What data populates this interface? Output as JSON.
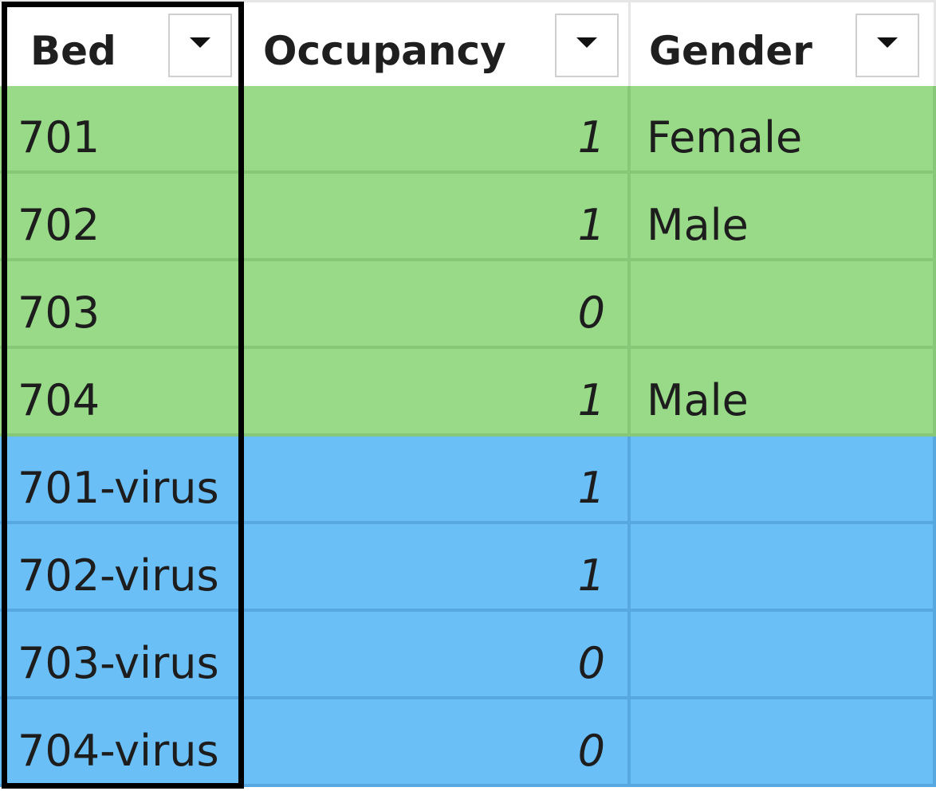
{
  "columns": [
    {
      "key": "bed",
      "label": "Bed"
    },
    {
      "key": "occupancy",
      "label": "Occupancy"
    },
    {
      "key": "gender",
      "label": "Gender"
    }
  ],
  "filter_icon": "dropdown-triangle",
  "colors": {
    "green_row": "#98da88",
    "green_line": "#86c877",
    "blue_row": "#6bbff7",
    "blue_line": "#57a8e0",
    "outline": "#000000"
  },
  "rows": [
    {
      "bed": "701",
      "occupancy": "1",
      "gender": "Female",
      "group": "green"
    },
    {
      "bed": "702",
      "occupancy": "1",
      "gender": "Male",
      "group": "green"
    },
    {
      "bed": "703",
      "occupancy": "0",
      "gender": "",
      "group": "green"
    },
    {
      "bed": "704",
      "occupancy": "1",
      "gender": "Male",
      "group": "green"
    },
    {
      "bed": "701-virus",
      "occupancy": "1",
      "gender": "",
      "group": "blue"
    },
    {
      "bed": "702-virus",
      "occupancy": "1",
      "gender": "",
      "group": "blue"
    },
    {
      "bed": "703-virus",
      "occupancy": "0",
      "gender": "",
      "group": "blue"
    },
    {
      "bed": "704-virus",
      "occupancy": "0",
      "gender": "",
      "group": "blue"
    }
  ]
}
